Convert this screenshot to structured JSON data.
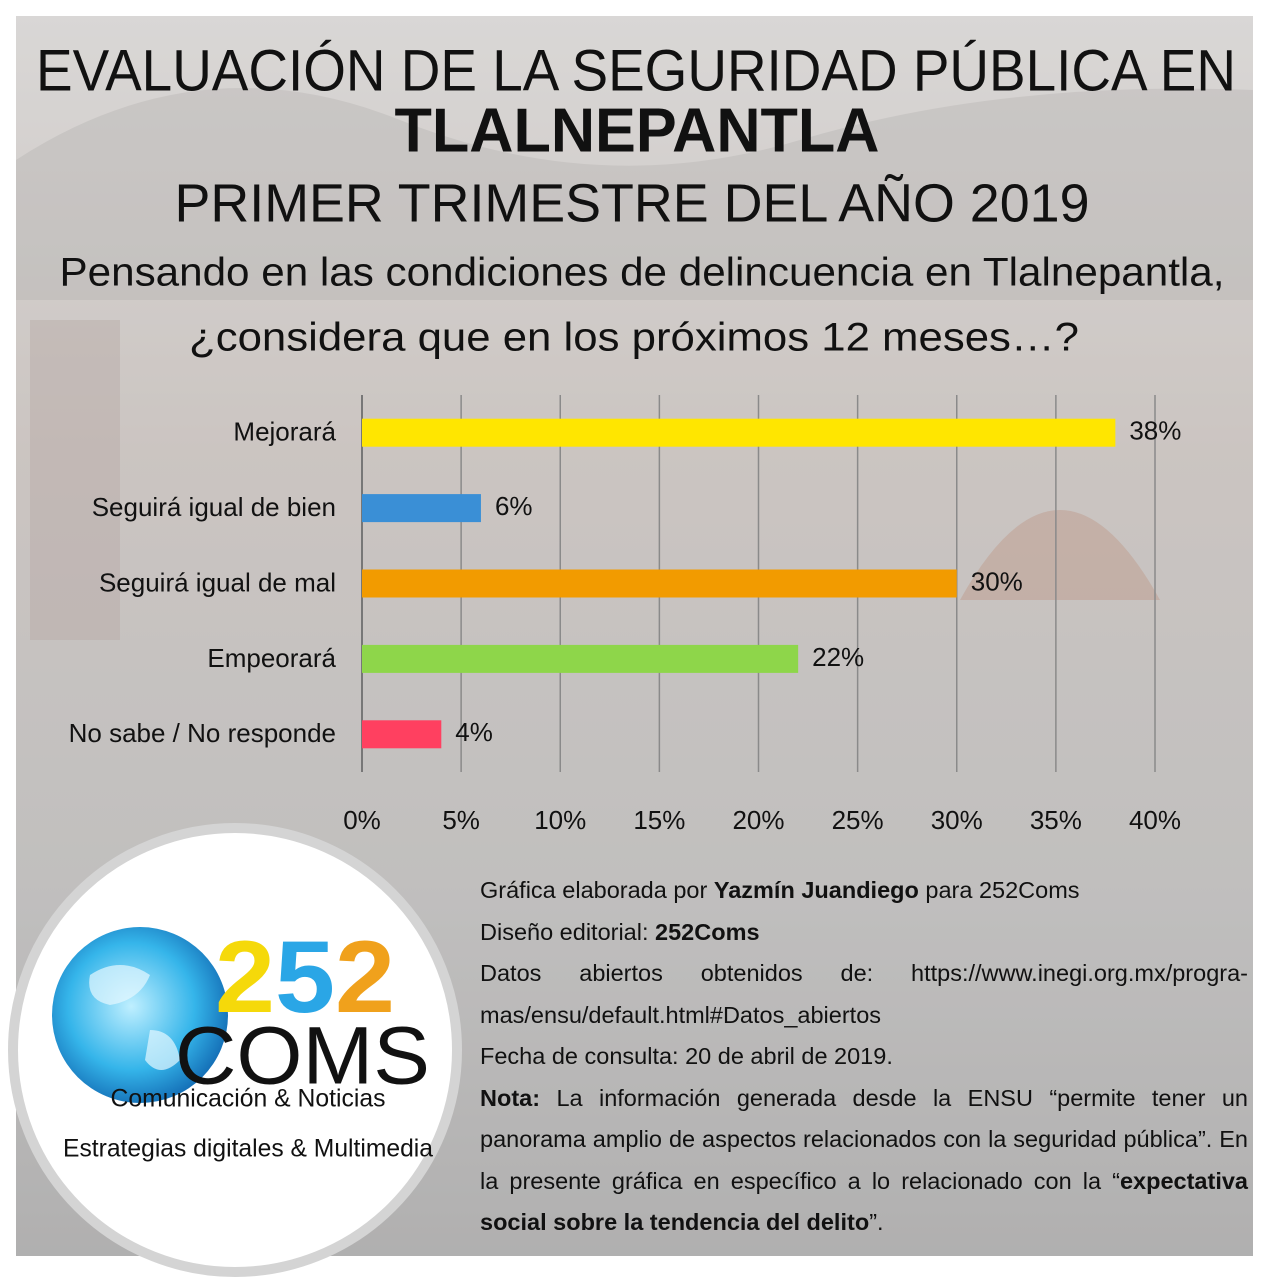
{
  "header": {
    "lines": [
      "EVALUACIÓN DE LA SEGURIDAD PÚBLICA EN",
      "TLALNEPANTLA",
      "PRIMER TRIMESTRE DEL AÑO 2019"
    ],
    "highlight_color": "#c0201e"
  },
  "chart_data": {
    "type": "bar",
    "orientation": "horizontal",
    "title": [
      "Pensando en las condiciones de delincuencia en Tlalnepantla,",
      "¿considera que en los próximos 12 meses…?"
    ],
    "categories": [
      "Mejorará",
      "Seguirá igual de bien",
      "Seguirá igual de mal",
      "Empeorará",
      "No sabe / No responde"
    ],
    "values": [
      38,
      6,
      30,
      22,
      4
    ],
    "value_labels": [
      "38%",
      "6%",
      "30%",
      "22%",
      "4%"
    ],
    "colors": [
      "#ffe600",
      "#3a8fd6",
      "#f29b00",
      "#8ed64a",
      "#ff4060"
    ],
    "xlim": [
      0,
      40
    ],
    "xticks": [
      {
        "value": 0,
        "label": "0%"
      },
      {
        "value": 5,
        "label": "5%"
      },
      {
        "value": 10,
        "label": "10%"
      },
      {
        "value": 15,
        "label": "15%"
      },
      {
        "value": 20,
        "label": "20%"
      },
      {
        "value": 25,
        "label": "25%"
      },
      {
        "value": 30,
        "label": "30%"
      },
      {
        "value": 35,
        "label": "35%"
      },
      {
        "value": 40,
        "label": "40%"
      }
    ],
    "grid": true
  },
  "logo": {
    "digits": [
      {
        "text": "2",
        "color": "#f5d90a"
      },
      {
        "text": "5",
        "color": "#2aa6e6"
      },
      {
        "text": "2",
        "color": "#f0a11c"
      }
    ],
    "name": "COMS",
    "taglines": [
      "Comunicación & Noticias",
      "Estrategias digitales & Multimedia"
    ]
  },
  "credits": [
    [
      {
        "text": "Gráfica elaborada por ",
        "bold": false
      },
      {
        "text": "Yazmín Juandiego",
        "bold": true
      },
      {
        "text": " para 252Coms",
        "bold": false
      }
    ],
    [
      {
        "text": "Diseño editorial: ",
        "bold": false
      },
      {
        "text": "252Coms",
        "bold": true
      }
    ],
    [
      {
        "text": "Datos abiertos obtenidos de: https://www.inegi.org.mx/progra-mas/ensu/default.html#Datos_abiertos",
        "bold": false
      }
    ],
    [
      {
        "text": "Fecha de consulta: 20 de abril de 2019.",
        "bold": false
      }
    ],
    [
      {
        "text": "Nota:",
        "bold": true
      },
      {
        "text": " La información generada desde la ENSU “permite tener un panorama amplio de aspectos relacionados con la seguridad pública”. En la presente gráfica en específico a lo relacionado con la “",
        "bold": false
      },
      {
        "text": "expectativa social sobre la tendencia del delito",
        "bold": true
      },
      {
        "text": "”.",
        "bold": false
      }
    ]
  ]
}
